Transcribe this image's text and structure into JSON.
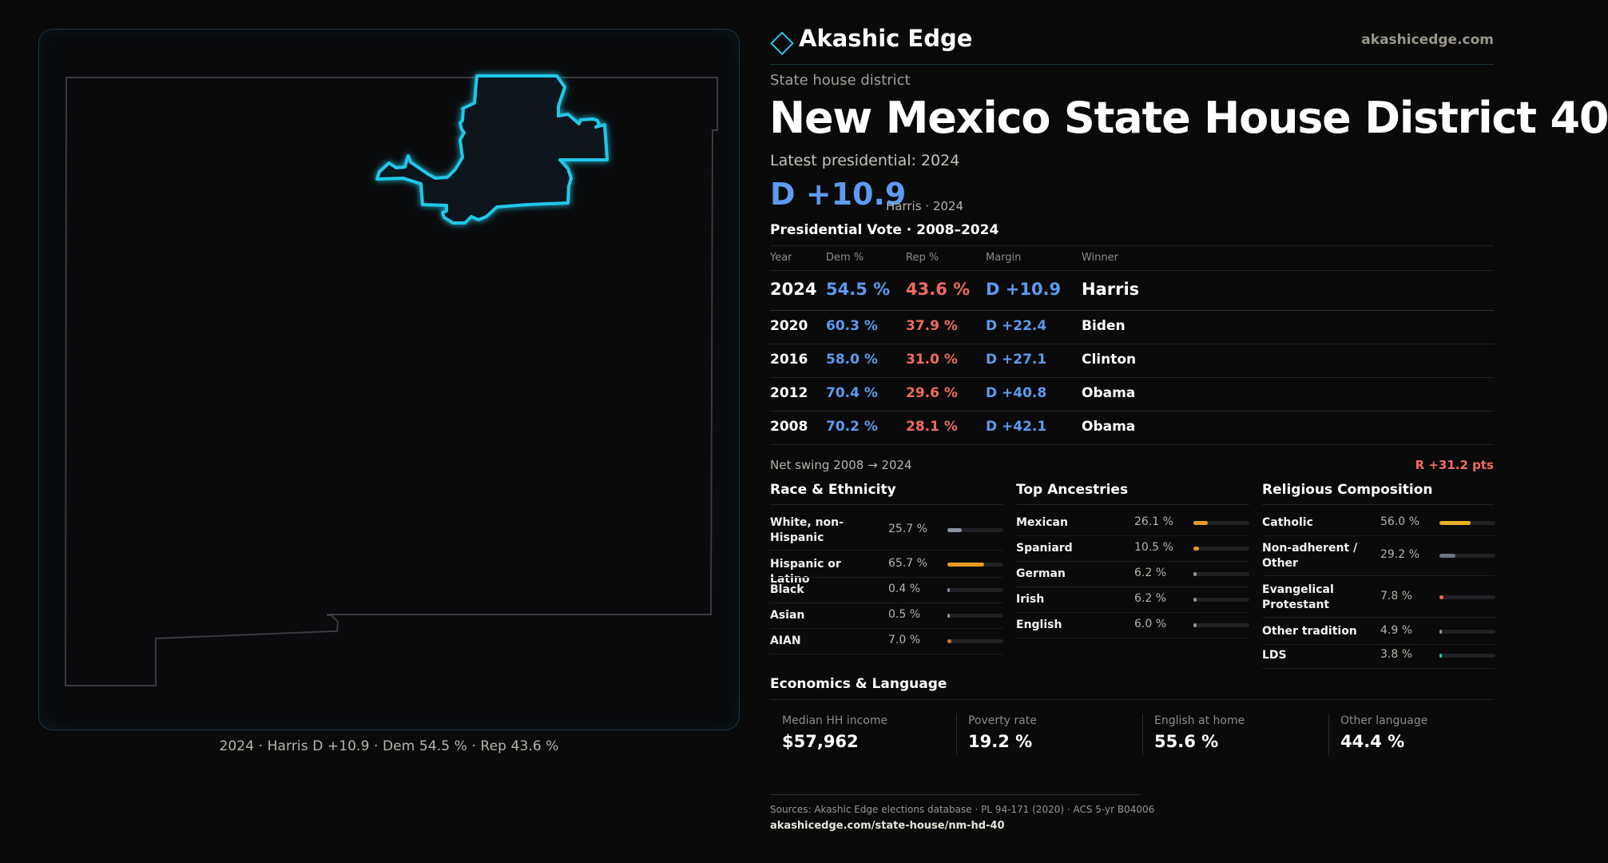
{
  "brand": {
    "name": "Akashic Edge",
    "url": "akashicedge.com",
    "logo_icon": "diamond-outline-icon",
    "accent": "#22c7e8"
  },
  "district": {
    "type_label": "State house district",
    "title": "New Mexico State House District 40",
    "latest_label": "Latest presidential: 2024",
    "margin": "D +10.9",
    "margin_sub": "Harris · 2024"
  },
  "map": {
    "caption": "2024 · Harris D +10.9 · Dem 54.5 % · Rep 43.6 %",
    "state_outline_color": "#3a3b3e",
    "district_color": "#22c7e8"
  },
  "vote_table": {
    "title": "Presidential Vote · 2008–2024",
    "headers": [
      "Year",
      "Dem %",
      "Rep %",
      "Margin",
      "Winner"
    ],
    "rows": [
      {
        "year": "2024",
        "dem": "54.5 %",
        "rep": "43.6 %",
        "margin": "D +10.9",
        "winner": "Harris"
      },
      {
        "year": "2020",
        "dem": "60.3 %",
        "rep": "37.9 %",
        "margin": "D +22.4",
        "winner": "Biden"
      },
      {
        "year": "2016",
        "dem": "58.0 %",
        "rep": "31.0 %",
        "margin": "D +27.1",
        "winner": "Clinton"
      },
      {
        "year": "2012",
        "dem": "70.4 %",
        "rep": "29.6 %",
        "margin": "D +40.8",
        "winner": "Obama"
      },
      {
        "year": "2008",
        "dem": "70.2 %",
        "rep": "28.1 %",
        "margin": "D +42.1",
        "winner": "Obama"
      }
    ],
    "swing_label": "Net swing 2008 → 2024",
    "swing_value": "R +31.2 pts"
  },
  "race": {
    "title": "Race & Ethnicity",
    "rows": [
      {
        "label": "White, non-\nHispanic",
        "pct": "25.7 %",
        "value": 25.7,
        "color": "#8a93a3"
      },
      {
        "label": "Hispanic or Latino",
        "pct": "65.7 %",
        "value": 65.7,
        "color": "#e89a26"
      },
      {
        "label": "Black",
        "pct": "0.4 %",
        "value": 0.4,
        "color": "#8a93a3"
      },
      {
        "label": "Asian",
        "pct": "0.5 %",
        "value": 0.5,
        "color": "#8a93a3"
      },
      {
        "label": "AIAN",
        "pct": "7.0 %",
        "value": 7.0,
        "color": "#d0752b"
      }
    ]
  },
  "ancestry": {
    "title": "Top Ancestries",
    "rows": [
      {
        "label": "Mexican",
        "pct": "26.1 %",
        "value": 26.1,
        "color": "#e89a26"
      },
      {
        "label": "Spaniard",
        "pct": "10.5 %",
        "value": 10.5,
        "color": "#e89a26"
      },
      {
        "label": "German",
        "pct": "6.2 %",
        "value": 6.2,
        "color": "#8a93a3"
      },
      {
        "label": "Irish",
        "pct": "6.2 %",
        "value": 6.2,
        "color": "#8a93a3"
      },
      {
        "label": "English",
        "pct": "6.0 %",
        "value": 6.0,
        "color": "#8a93a3"
      }
    ]
  },
  "religion": {
    "title": "Religious Composition",
    "rows": [
      {
        "label": "Catholic",
        "pct": "56.0 %",
        "value": 56.0,
        "color": "#e8b026"
      },
      {
        "label": "Non-adherent /\nOther",
        "pct": "29.2 %",
        "value": 29.2,
        "color": "#6b7486"
      },
      {
        "label": "Evangelical\nProtestant",
        "pct": "7.8 %",
        "value": 7.8,
        "color": "#ef6b63"
      },
      {
        "label": "Other tradition",
        "pct": "4.9 %",
        "value": 4.9,
        "color": "#8a93a3"
      },
      {
        "label": "LDS",
        "pct": "3.8 %",
        "value": 3.8,
        "color": "#22c7b8"
      }
    ]
  },
  "economics": {
    "title": "Economics & Language",
    "stats": [
      {
        "label": "Median HH income",
        "value": "$57,962"
      },
      {
        "label": "Poverty rate",
        "value": "19.2 %"
      },
      {
        "label": "English at home",
        "value": "55.6 %"
      },
      {
        "label": "Other language",
        "value": "44.4 %"
      }
    ]
  },
  "sources": {
    "text": "Sources: Akashic Edge elections database · PL 94-171 (2020) · ACS 5-yr B04006",
    "url": "akashicedge.com/state-house/nm-hd-40"
  }
}
